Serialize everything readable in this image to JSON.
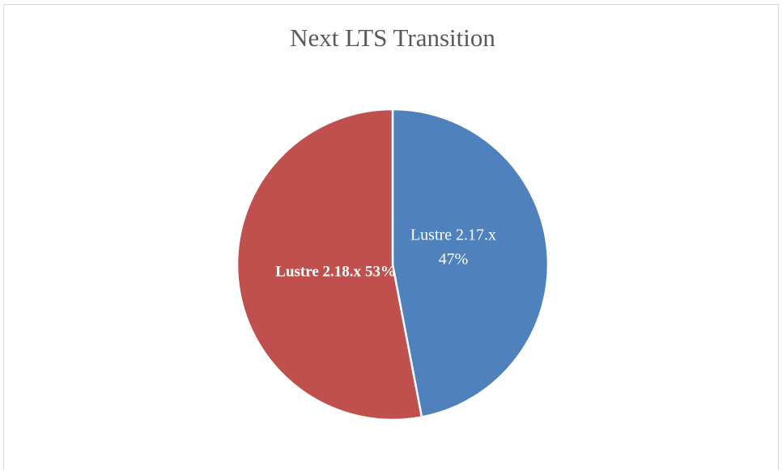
{
  "chart_data": {
    "type": "pie",
    "title": "Next LTS Transition",
    "categories": [
      "Lustre 2.17.x",
      "Lustre 2.18.x"
    ],
    "values": [
      47,
      53
    ],
    "value_labels": [
      "47%",
      "53%"
    ],
    "colors": [
      "#4f81bd",
      "#c0504d"
    ]
  }
}
